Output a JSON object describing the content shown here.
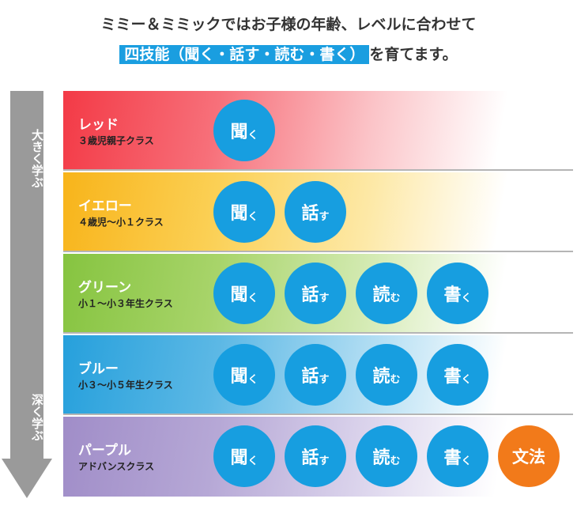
{
  "header": {
    "line1": "ミミー＆ミミックではお子様の年齢、レベルに合わせて",
    "line2_highlight": "四技能（聞く・話す・読む・書く）",
    "line2_rest": "を育てます。"
  },
  "arrow": {
    "top_label": "大きく学ぶ",
    "bottom_label": "深く学ぶ",
    "color": "#9a9a9a"
  },
  "skills": {
    "listen_kanji": "聞",
    "listen_kana": "く",
    "speak_kanji": "話",
    "speak_kana": "す",
    "read_kanji": "読",
    "read_kana": "む",
    "write_kanji": "書",
    "write_kana": "く",
    "grammar": "文法"
  },
  "levels": [
    {
      "name": "レッド",
      "subtitle": "３歳児親子クラス",
      "color": "#f33a46"
    },
    {
      "name": "イエロー",
      "subtitle": "４歳児〜小１クラス",
      "color": "#f8b41a"
    },
    {
      "name": "グリーン",
      "subtitle": "小１〜小３年生クラス",
      "color": "#86c440"
    },
    {
      "name": "ブルー",
      "subtitle": "小３〜小５年生クラス",
      "color": "#26a0dc"
    },
    {
      "name": "パープル",
      "subtitle": "アドバンスクラス",
      "color": "#a08dc8"
    }
  ],
  "colors": {
    "skill_circle": "#179ee0",
    "grammar_circle": "#f27a1a"
  }
}
